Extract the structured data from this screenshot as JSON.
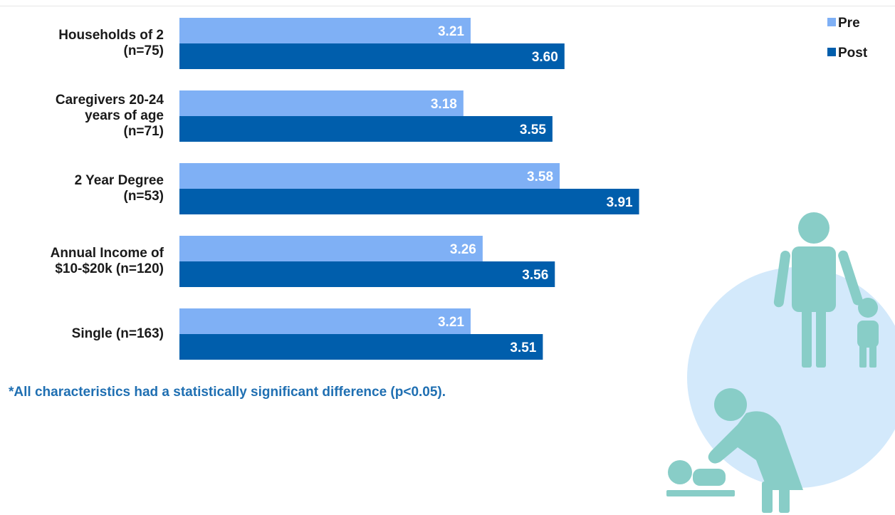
{
  "chart_data": {
    "type": "bar",
    "orientation": "horizontal",
    "categories": [
      "Households of 2\n(n=75)",
      "Caregivers 20-24\nyears of age\n(n=71)",
      "2 Year Degree\n(n=53)",
      "Annual Income of\n$10-$20k (n=120)",
      "Single (n=163)"
    ],
    "series": [
      {
        "name": "Pre",
        "values": [
          3.21,
          3.18,
          3.58,
          3.26,
          3.21
        ],
        "color": "#7fb0f5"
      },
      {
        "name": "Post",
        "values": [
          3.6,
          3.55,
          3.91,
          3.56,
          3.51
        ],
        "color": "#005eac"
      }
    ],
    "title": "",
    "xlabel": "",
    "ylabel": "",
    "xlim": [
      2,
      4
    ],
    "grid": false,
    "legend_position": "top-right",
    "data_labels": [
      "3.21",
      "3.60",
      "3.18",
      "3.55",
      "3.58",
      "3.91",
      "3.26",
      "3.56",
      "3.21",
      "3.51"
    ]
  },
  "footnote": "*All characteristics had a statistically significant difference (p<0.05).",
  "colors": {
    "pre": "#7fb0f5",
    "post": "#005eac",
    "footnote": "#1f6fb2",
    "illustration_circle": "#d3e9fb",
    "illustration_figures": "#88cdc7"
  },
  "illustration_icons": [
    "parent-with-child-icon",
    "parent-changing-baby-icon"
  ]
}
